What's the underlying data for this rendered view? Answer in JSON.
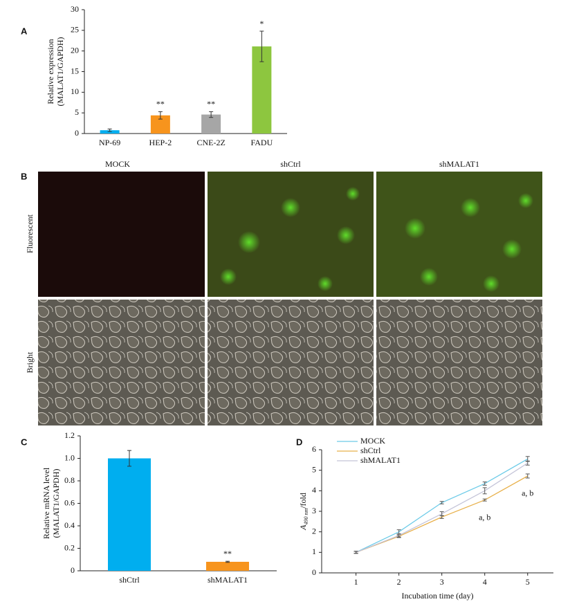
{
  "panel_labels": [
    "A",
    "B",
    "C",
    "D"
  ],
  "micrographs": {
    "columns": [
      "MOCK",
      "shCtrl",
      "shMALAT1"
    ],
    "rows": [
      "Fluorescent",
      "Bright"
    ]
  },
  "chart_data": [
    {
      "type": "bar",
      "ylabel": [
        "Relative expression",
        "(MALAT1/GAPDH)"
      ],
      "categories": [
        "NP-69",
        "HEP-2",
        "CNE-2Z",
        "FADU"
      ],
      "values": [
        0.8,
        4.4,
        4.6,
        21.1
      ],
      "errors": [
        0.3,
        0.9,
        0.7,
        3.7
      ],
      "significance": [
        null,
        "**",
        "**",
        "*"
      ],
      "colors": [
        "#00aeef",
        "#f7941d",
        "#a6a6a6",
        "#8dc63f"
      ],
      "ylim": [
        0,
        30
      ],
      "yticks": [
        0,
        5,
        10,
        15,
        20,
        25,
        30
      ]
    },
    {
      "type": "bar",
      "ylabel": [
        "Relative mRNA level",
        "(MALAT1/GAPDH)"
      ],
      "categories": [
        "shCtrl",
        "shMALAT1"
      ],
      "values": [
        1.0,
        0.08
      ],
      "errors": [
        0.07,
        0.005
      ],
      "significance": [
        null,
        "**"
      ],
      "colors": [
        "#00aeef",
        "#f7941d"
      ],
      "ylim": [
        0,
        1.2
      ],
      "yticks": [
        0,
        0.2,
        0.4,
        0.6,
        0.8,
        {
          "value": 1,
          "label": "1.0"
        },
        1.2
      ]
    },
    {
      "type": "line",
      "xlabel": "Incubation time (day)",
      "ylabel": {
        "main": "A",
        "sub": "490 nm",
        "suffix": "/fold"
      },
      "x": [
        1,
        2,
        3,
        4,
        5
      ],
      "series": [
        {
          "name": "MOCK",
          "color": "#6ccbe8",
          "values": [
            1.0,
            2.0,
            3.42,
            4.35,
            5.55
          ],
          "errors": [
            0.05,
            0.1,
            0.06,
            0.08,
            0.12
          ]
        },
        {
          "name": "shCtrl",
          "color": "#e8b04a",
          "values": [
            1.0,
            1.78,
            2.72,
            3.55,
            4.72
          ],
          "errors": [
            0.05,
            0.06,
            0.07,
            0.05,
            0.1
          ]
        },
        {
          "name": "shMALAT1",
          "color": "#c4c4d8",
          "values": [
            1.0,
            1.82,
            2.88,
            4.0,
            5.35
          ],
          "errors": [
            0.05,
            0.07,
            0.1,
            0.15,
            0.1
          ]
        }
      ],
      "annotations": [
        {
          "text": "a, b",
          "x": 4
        },
        {
          "text": "a, b",
          "x": 5
        }
      ],
      "legend": "upper left",
      "xlim": [
        0.2,
        5.6
      ],
      "xticks": [
        1,
        2,
        3,
        4,
        5
      ],
      "ylim": [
        0,
        6
      ],
      "yticks": [
        0,
        1,
        2,
        3,
        4,
        5,
        6
      ]
    }
  ]
}
